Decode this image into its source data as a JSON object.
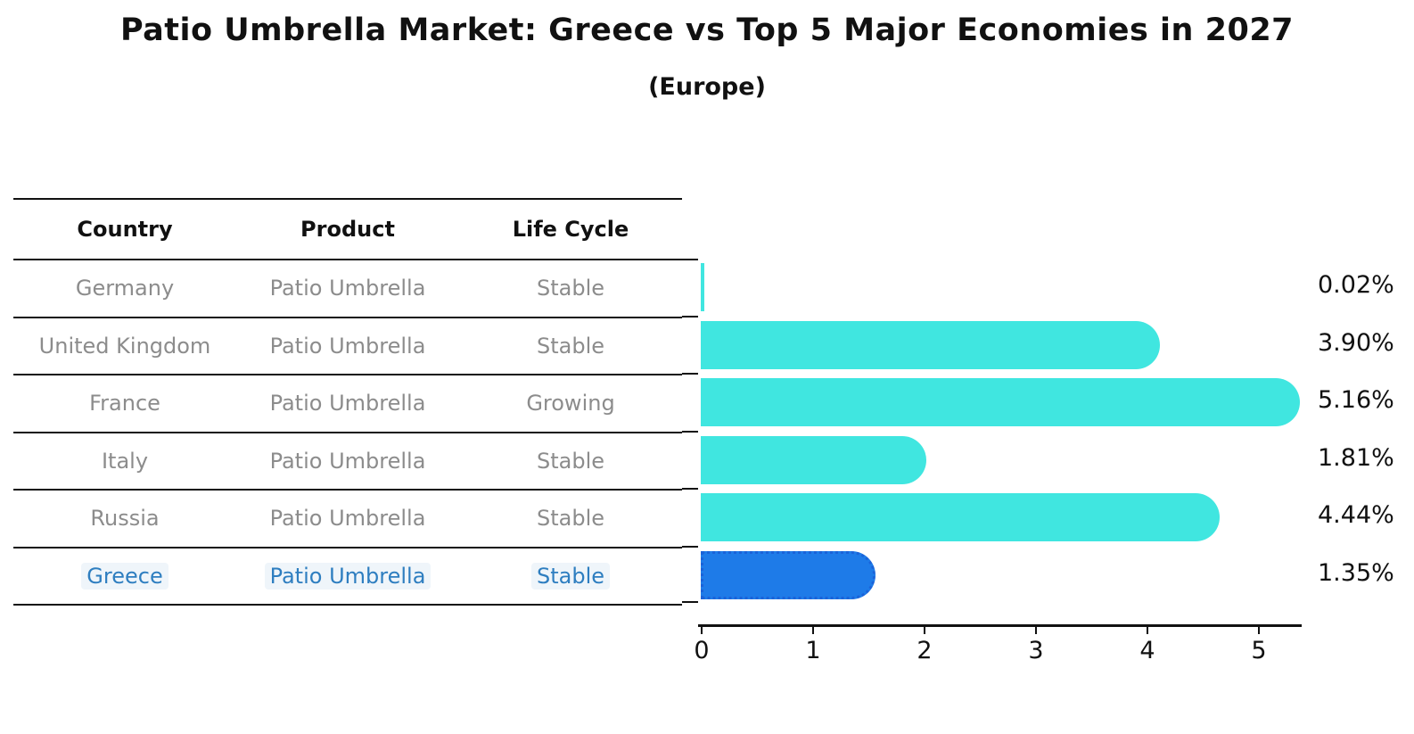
{
  "title": "Patio Umbrella Market: Greece vs Top 5 Major Economies in 2027",
  "subtitle": "(Europe)",
  "table": {
    "headers": [
      "Country",
      "Product",
      "Life Cycle"
    ],
    "rows": [
      {
        "country": "Germany",
        "product": "Patio Umbrella",
        "life_cycle": "Stable",
        "highlight": false
      },
      {
        "country": "United Kingdom",
        "product": "Patio Umbrella",
        "life_cycle": "Stable",
        "highlight": false
      },
      {
        "country": "France",
        "product": "Patio Umbrella",
        "life_cycle": "Growing",
        "highlight": false
      },
      {
        "country": "Italy",
        "product": "Patio Umbrella",
        "life_cycle": "Stable",
        "highlight": false
      },
      {
        "country": "Russia",
        "product": "Patio Umbrella",
        "life_cycle": "Stable",
        "highlight": false
      },
      {
        "country": "Greece",
        "product": "Patio Umbrella",
        "life_cycle": "Stable",
        "highlight": true
      }
    ]
  },
  "chart_data": {
    "type": "bar",
    "orientation": "horizontal",
    "categories": [
      "Germany",
      "United Kingdom",
      "France",
      "Italy",
      "Russia",
      "Greece"
    ],
    "values": [
      0.02,
      3.9,
      5.16,
      1.81,
      4.44,
      1.35
    ],
    "value_labels": [
      "0.02%",
      "3.90%",
      "5.16%",
      "1.81%",
      "4.44%",
      "1.35%"
    ],
    "x_ticks": [
      "0",
      "1",
      "2",
      "3",
      "4",
      "5"
    ],
    "xlim": [
      0,
      5.4
    ],
    "grid": false,
    "legend": "none",
    "bar_color": "#40E6E0",
    "highlight_color": "#1E7BE8",
    "highlight_border_color": "#1a63d9",
    "highlight_index": 5,
    "highlight_text_color": "#2e7ec0",
    "row_text_color": "#8c8c8c"
  }
}
